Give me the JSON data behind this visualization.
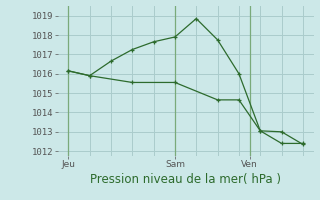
{
  "background_color": "#cce8e8",
  "grid_color": "#aacccc",
  "line_color": "#2d6b2d",
  "xlabel": "Pression niveau de la mer( hPa )",
  "ylim": [
    1011.75,
    1019.5
  ],
  "yticks": [
    1012,
    1013,
    1014,
    1015,
    1016,
    1017,
    1018,
    1019
  ],
  "xlim": [
    0,
    12
  ],
  "xtick_positions": [
    0.5,
    5.5,
    9.0
  ],
  "xtick_labels": [
    "Jeu",
    "Sam",
    "Ven"
  ],
  "vline_positions": [
    0.5,
    5.5,
    9.0
  ],
  "line1_x": [
    0.5,
    1.5,
    2.5,
    3.5,
    4.5,
    5.5,
    6.5,
    7.5,
    8.5,
    9.5,
    10.5,
    11.5
  ],
  "line1_y": [
    1016.15,
    1015.9,
    1016.65,
    1017.25,
    1017.65,
    1017.9,
    1018.85,
    1017.75,
    1016.0,
    1013.05,
    1012.4,
    1012.4
  ],
  "line2_x": [
    0.5,
    1.5,
    3.5,
    5.5,
    7.5,
    8.5,
    9.5,
    10.5,
    11.5
  ],
  "line2_y": [
    1016.15,
    1015.9,
    1015.55,
    1015.55,
    1014.65,
    1014.65,
    1013.05,
    1013.0,
    1012.35
  ],
  "tick_fontsize": 6.5,
  "xlabel_fontsize": 8.5,
  "xlabel_color": "#2d6b2d"
}
